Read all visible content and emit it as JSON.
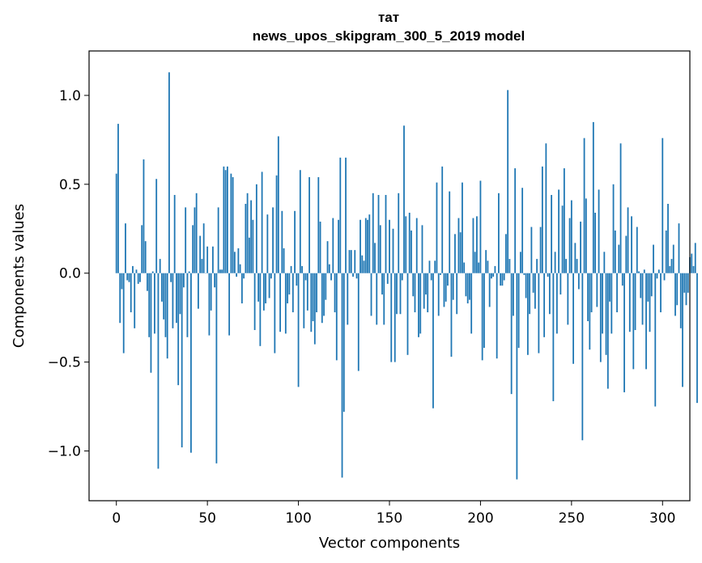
{
  "chart_data": {
    "type": "bar",
    "title_line1": "тат",
    "title_line2": "news_upos_skipgram_300_5_2019 model",
    "xlabel": "Vector components",
    "ylabel": "Components values",
    "xlim": [
      -15,
      315
    ],
    "ylim": [
      -1.28,
      1.25
    ],
    "xticks": [
      {
        "value": 0,
        "label": "0"
      },
      {
        "value": 50,
        "label": "50"
      },
      {
        "value": 100,
        "label": "100"
      },
      {
        "value": 150,
        "label": "150"
      },
      {
        "value": 200,
        "label": "200"
      },
      {
        "value": 250,
        "label": "250"
      },
      {
        "value": 300,
        "label": "300"
      }
    ],
    "yticks": [
      {
        "value": -1.0,
        "label": "−1.0"
      },
      {
        "value": -0.5,
        "label": "−0.5"
      },
      {
        "value": 0.0,
        "label": "0.0"
      },
      {
        "value": 0.5,
        "label": "0.5"
      },
      {
        "value": 1.0,
        "label": "1.0"
      }
    ],
    "bar_color": "#1f77b4",
    "values": [
      0.56,
      0.84,
      -0.28,
      -0.09,
      -0.45,
      0.28,
      -0.04,
      -0.05,
      -0.22,
      0.04,
      -0.31,
      0.02,
      -0.06,
      -0.05,
      0.27,
      0.64,
      0.18,
      -0.1,
      -0.36,
      -0.56,
      0.01,
      -0.34,
      0.53,
      -1.1,
      0.08,
      -0.16,
      -0.26,
      -0.36,
      -0.48,
      1.13,
      -0.05,
      -0.31,
      0.44,
      -0.28,
      -0.63,
      -0.23,
      -0.98,
      -0.08,
      0.37,
      -0.36,
      0.01,
      -1.01,
      0.27,
      0.37,
      0.45,
      -0.2,
      0.21,
      0.08,
      0.28,
      0.0,
      0.15,
      -0.35,
      -0.21,
      0.15,
      -0.08,
      -1.07,
      0.37,
      0.02,
      0.02,
      0.6,
      0.58,
      0.6,
      -0.35,
      0.56,
      0.54,
      0.12,
      -0.02,
      0.14,
      0.05,
      -0.17,
      -0.03,
      0.39,
      0.45,
      0.2,
      0.41,
      0.3,
      -0.32,
      0.5,
      -0.16,
      -0.41,
      0.57,
      -0.21,
      -0.17,
      0.33,
      -0.14,
      -0.03,
      0.37,
      -0.45,
      0.55,
      0.77,
      -0.33,
      0.35,
      0.14,
      -0.34,
      -0.17,
      -0.12,
      0.04,
      -0.22,
      0.35,
      -0.07,
      -0.64,
      0.58,
      0.04,
      -0.31,
      -0.04,
      -0.21,
      0.54,
      -0.33,
      -0.27,
      -0.4,
      -0.22,
      0.54,
      0.29,
      -0.28,
      -0.24,
      -0.15,
      0.18,
      0.05,
      -0.04,
      0.31,
      -0.22,
      -0.49,
      0.3,
      0.65,
      -1.15,
      -0.78,
      0.65,
      -0.29,
      0.13,
      0.13,
      -0.02,
      0.13,
      -0.03,
      -0.55,
      0.3,
      0.1,
      0.07,
      0.31,
      0.3,
      0.33,
      -0.24,
      0.45,
      0.17,
      -0.29,
      0.44,
      0.27,
      -0.12,
      -0.29,
      0.44,
      -0.06,
      0.3,
      -0.5,
      0.25,
      -0.5,
      -0.23,
      0.45,
      -0.23,
      -0.04,
      0.83,
      0.32,
      -0.46,
      0.34,
      0.24,
      -0.13,
      -0.22,
      0.31,
      -0.36,
      -0.34,
      0.27,
      -0.2,
      -0.12,
      -0.22,
      0.07,
      -0.04,
      -0.76,
      0.07,
      0.51,
      -0.24,
      -0.01,
      0.6,
      -0.19,
      -0.16,
      -0.07,
      0.46,
      -0.47,
      -0.15,
      0.22,
      -0.23,
      0.31,
      0.23,
      0.51,
      0.06,
      -0.13,
      -0.17,
      -0.15,
      -0.34,
      0.31,
      0.12,
      0.32,
      0.06,
      0.52,
      -0.49,
      -0.42,
      0.13,
      0.07,
      -0.19,
      -0.03,
      -0.02,
      0.04,
      -0.48,
      0.45,
      -0.07,
      -0.07,
      -0.04,
      0.22,
      1.03,
      0.08,
      -0.68,
      -0.24,
      0.59,
      -1.16,
      -0.42,
      0.12,
      0.48,
      -0.01,
      -0.14,
      -0.46,
      -0.23,
      0.26,
      -0.11,
      -0.2,
      0.08,
      -0.45,
      0.26,
      0.6,
      -0.36,
      0.73,
      -0.02,
      -0.23,
      0.44,
      -0.72,
      0.12,
      -0.34,
      0.47,
      -0.12,
      0.38,
      0.59,
      0.08,
      -0.29,
      0.31,
      0.41,
      -0.51,
      0.17,
      0.08,
      -0.09,
      0.29,
      -0.94,
      0.76,
      0.42,
      -0.27,
      -0.43,
      -0.22,
      0.85,
      0.34,
      -0.19,
      0.47,
      -0.5,
      -0.34,
      0.12,
      -0.46,
      -0.65,
      -0.16,
      -0.34,
      0.5,
      0.24,
      -0.22,
      0.16,
      0.73,
      -0.07,
      -0.67,
      0.21,
      0.37,
      -0.33,
      0.32,
      -0.54,
      -0.32,
      0.26,
      0.01,
      -0.14,
      -0.29,
      0.02,
      -0.54,
      -0.16,
      -0.33,
      -0.13,
      0.16,
      -0.75,
      -0.03,
      0.02,
      -0.22,
      0.76,
      -0.04,
      0.24,
      0.39,
      0.04,
      0.08,
      0.16,
      -0.24,
      -0.18,
      0.28,
      -0.31,
      -0.64,
      -0.11,
      -0.18,
      -0.11,
      0.09,
      0.11,
      0.04,
      0.17,
      -0.73
    ]
  }
}
